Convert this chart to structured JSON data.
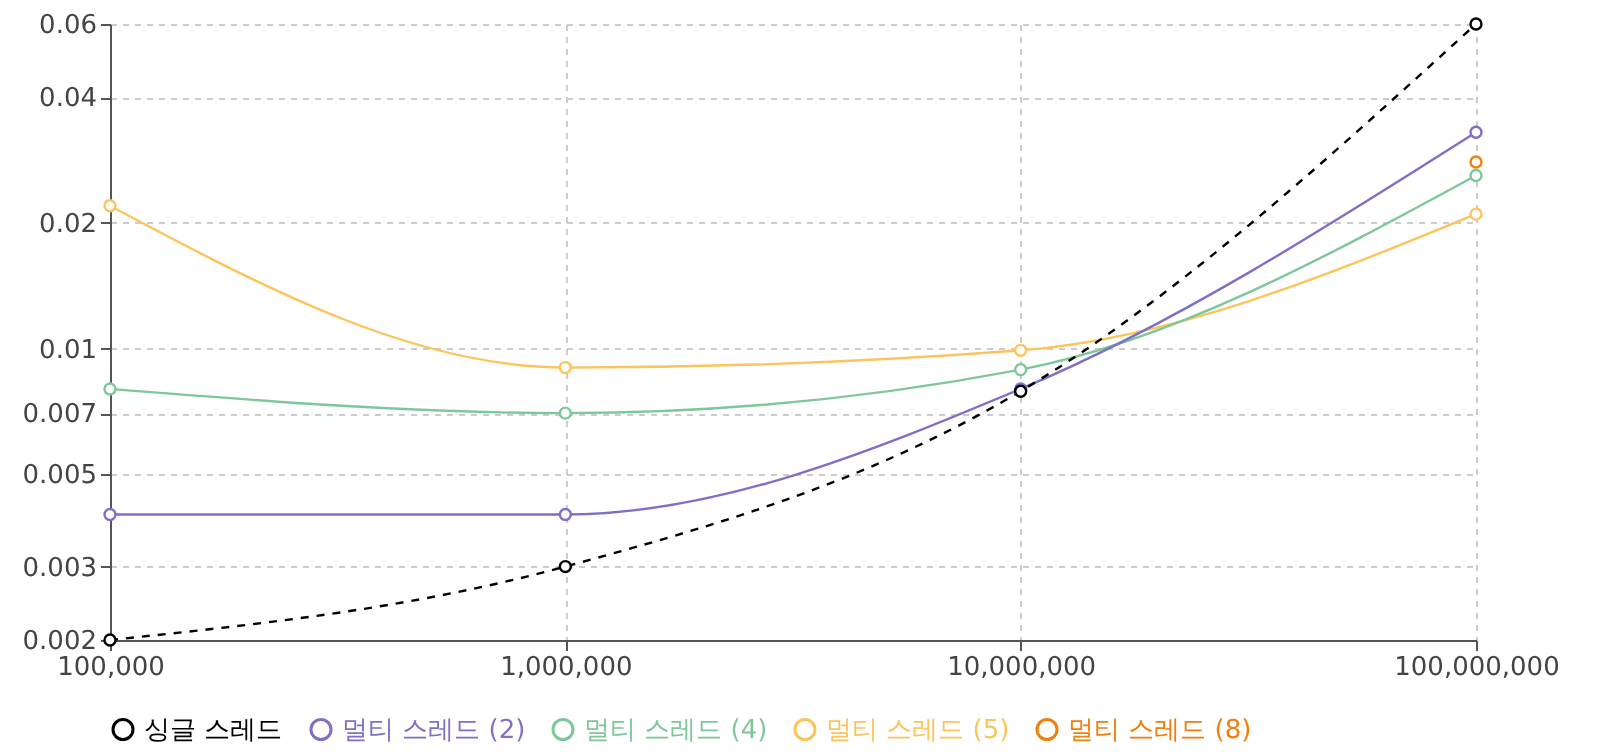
{
  "chart_data": {
    "type": "line",
    "x": [
      100000,
      1000000,
      10000000,
      100000000
    ],
    "series": [
      {
        "name": "싱글 스레드",
        "color": "#000000",
        "line_style": "dashed",
        "values": [
          0.002,
          0.003,
          0.0079,
          0.06
        ]
      },
      {
        "name": "멀티 스레드 (2)",
        "color": "#7b72c8",
        "values": [
          0.004,
          0.004,
          0.008,
          0.033
        ]
      },
      {
        "name": "멀티 스레드 (4)",
        "color": "#7ec79a",
        "values": [
          0.008,
          0.007,
          0.0089,
          0.026
        ]
      },
      {
        "name": "멀티 스레드 (5)",
        "color": "#fdc45c",
        "values": [
          0.022,
          0.009,
          0.0099,
          0.021
        ]
      },
      {
        "name": "멀티 스레드 (8)",
        "color": "#f07f0c",
        "values": [
          null,
          null,
          null,
          0.028
        ]
      }
    ],
    "log": "xy",
    "xlim": [
      100000,
      100000000
    ],
    "xticks": [
      {
        "value": 100000,
        "label": "100,000"
      },
      {
        "value": 1000000,
        "label": "1,000,000"
      },
      {
        "value": 10000000,
        "label": "10,000,000"
      },
      {
        "value": 100000000,
        "label": "100,000,000"
      }
    ],
    "ylim": [
      0.002,
      0.06
    ],
    "yticks": [
      0.002,
      0.003,
      0.005,
      0.007,
      0.01,
      0.02,
      0.04,
      0.06
    ],
    "grid": true,
    "legend": "bottom",
    "marker": "circle",
    "line_style": "solid"
  }
}
